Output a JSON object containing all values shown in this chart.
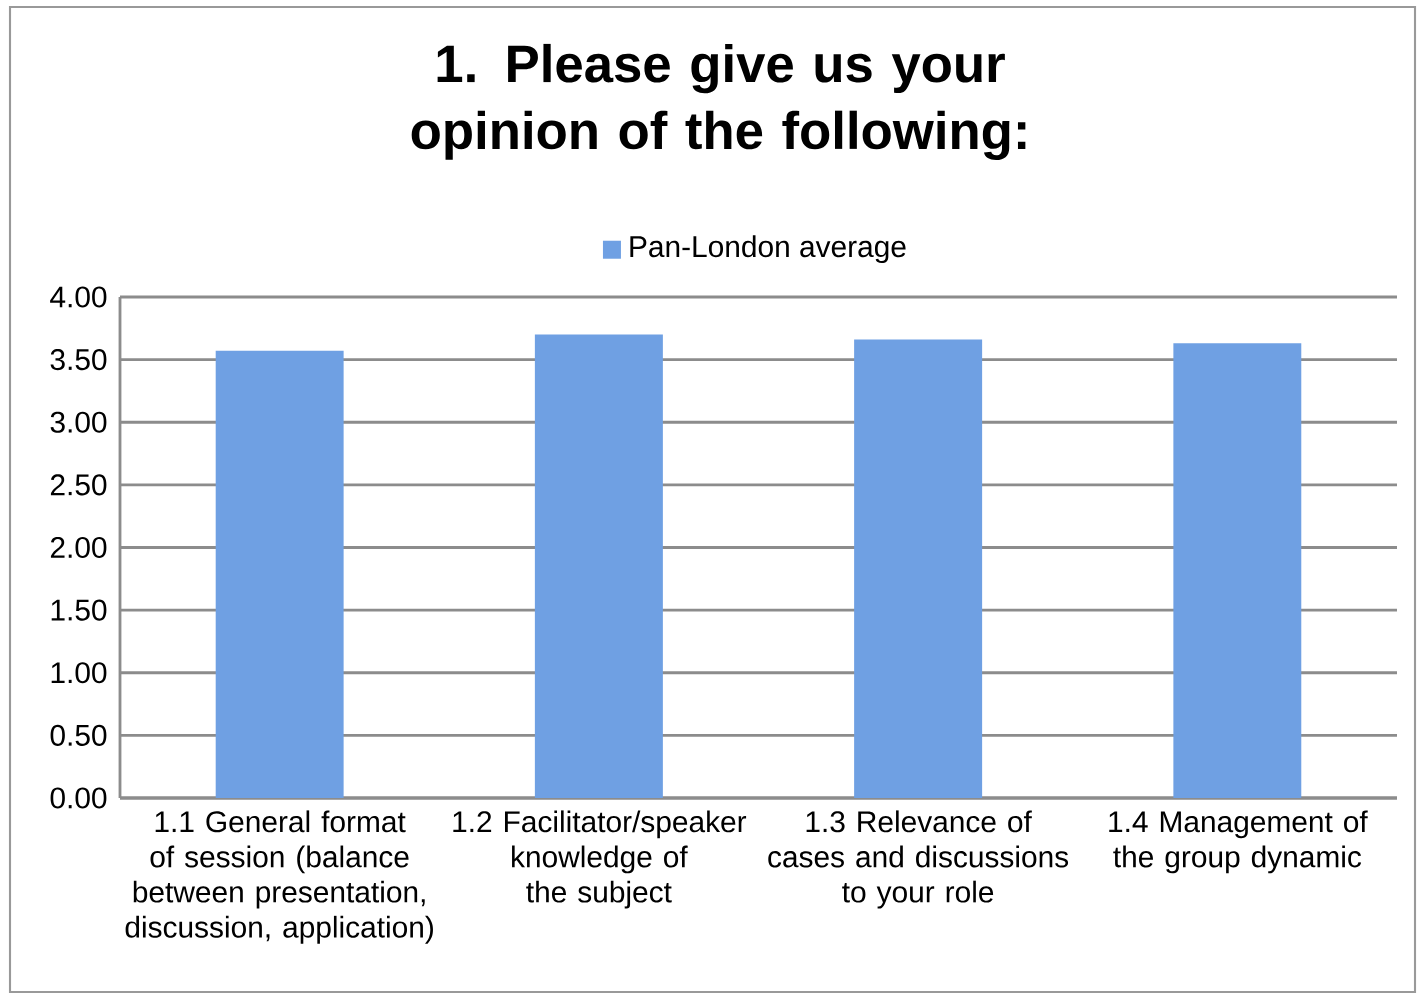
{
  "chart_data": {
    "type": "bar",
    "title": "1. Please give us your opinion of the following:",
    "categories": [
      "1.1 General format of session (balance between presentation, discussion, application)",
      "1.2 Facilitator/speaker knowledge of the subject",
      "1.3 Relevance of cases and discussions to your role",
      "1.4 Management of the group dynamic"
    ],
    "series": [
      {
        "name": "Pan-London average",
        "color": "#6fa0e3",
        "values": [
          3.57,
          3.7,
          3.66,
          3.63
        ]
      }
    ],
    "ylim": [
      0,
      4
    ],
    "yticks": [
      {
        "value": 0,
        "label": "0.00"
      },
      {
        "value": 0.5,
        "label": "0.50"
      },
      {
        "value": 1,
        "label": "1.00"
      },
      {
        "value": 1.5,
        "label": "1.50"
      },
      {
        "value": 2,
        "label": "2.00"
      },
      {
        "value": 2.5,
        "label": "2.50"
      },
      {
        "value": 3,
        "label": "3.00"
      },
      {
        "value": 3.5,
        "label": "3.50"
      },
      {
        "value": 4,
        "label": "4.00"
      }
    ],
    "grid": "y",
    "legend": "top"
  }
}
